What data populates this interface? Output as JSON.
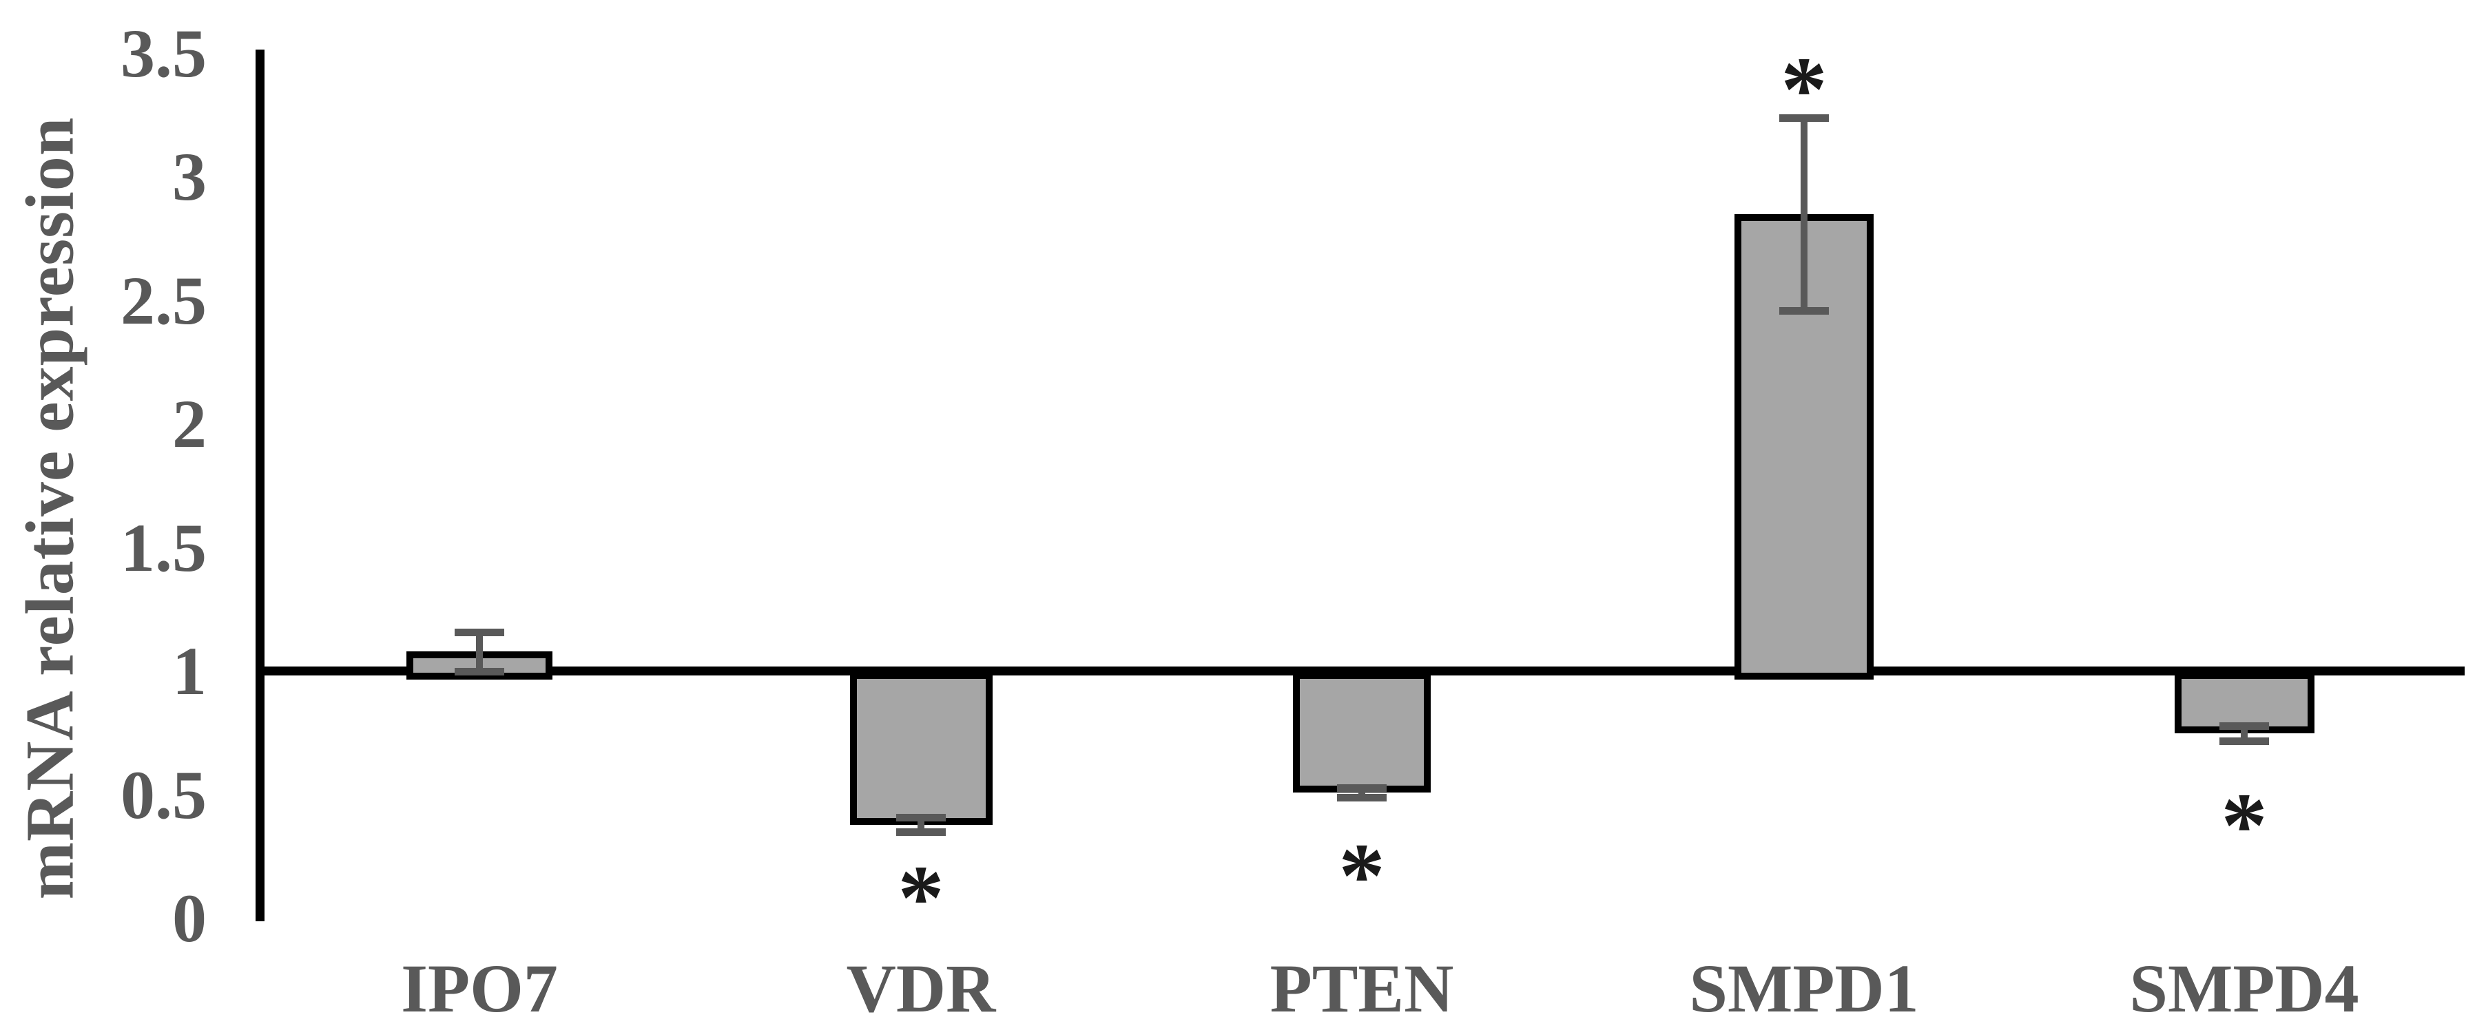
{
  "chart_data": {
    "type": "bar",
    "title": "",
    "xlabel": "",
    "ylabel": "mRNA relative expression",
    "categories": [
      "IPO7",
      "VDR",
      "PTEN",
      "SMPD1",
      "SMPD4"
    ],
    "values": [
      1.08,
      0.38,
      0.51,
      2.85,
      0.75
    ],
    "error_bars": [
      0.08,
      0.03,
      0.02,
      0.39,
      0.03
    ],
    "significance_markers": [
      "",
      "*",
      "*",
      "*",
      "*"
    ],
    "baseline": 1,
    "yticks": [
      3.5,
      3,
      2.5,
      2,
      1.5,
      1,
      0.5,
      0
    ],
    "ylim": [
      0,
      3.5
    ],
    "grid": false,
    "legend": "none",
    "bar_fill_color": "#a6a6a6",
    "bar_border_color": "#000000",
    "error_bar_color": "#595959",
    "axis_color": "#000000",
    "text_color": "#595959",
    "asterisk_color": "#1a1a1a"
  }
}
